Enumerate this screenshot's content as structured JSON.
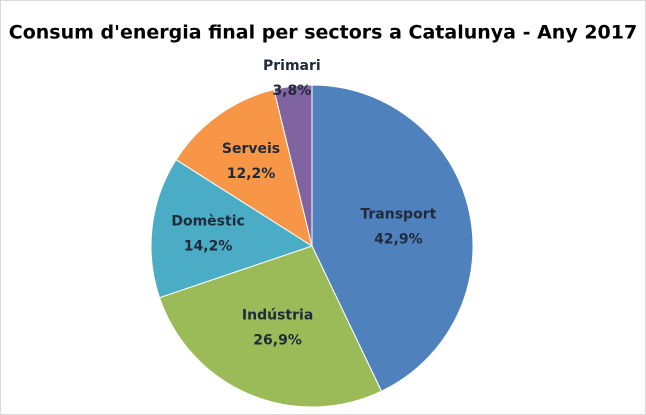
{
  "chart_data": {
    "type": "pie",
    "title": "Consum d'energia final per sectors a Catalunya - Any 2017",
    "categories": [
      "Transport",
      "Indústria",
      "Domèstic",
      "Serveis",
      "Primari"
    ],
    "values": [
      42.9,
      26.9,
      14.2,
      12.2,
      3.8
    ],
    "value_labels": [
      "42,9%",
      "26,9%",
      "14,2%",
      "12,2%",
      "3,8%"
    ],
    "colors": [
      "#4f81bd",
      "#9bbb59",
      "#4bacc6",
      "#f79646",
      "#8064a2"
    ]
  }
}
